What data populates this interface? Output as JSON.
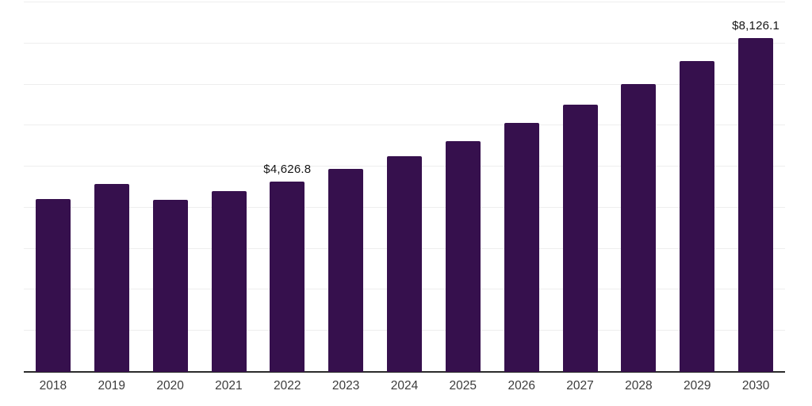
{
  "chart_data": {
    "type": "bar",
    "title": "",
    "xlabel": "",
    "ylabel": "",
    "categories": [
      "2018",
      "2019",
      "2020",
      "2021",
      "2022",
      "2023",
      "2024",
      "2025",
      "2026",
      "2027",
      "2028",
      "2029",
      "2030"
    ],
    "values": [
      4220,
      4570,
      4200,
      4410,
      4626.8,
      4940,
      5250,
      5630,
      6060,
      6500,
      7020,
      7580,
      8126.1
    ],
    "data_labels": [
      "",
      "",
      "",
      "",
      "$4,626.8",
      "",
      "",
      "",
      "",
      "",
      "",
      "",
      "$8,126.1"
    ],
    "ylim": [
      0,
      9000
    ],
    "gridline_step": 1000,
    "grid": "on",
    "legend": "none",
    "bar_color": "#36104D",
    "gridline_color": "#eeeeee",
    "axis_line_color": "#2b2b2b",
    "tick_label_color": "#3c3c3c",
    "data_label_color": "#161616",
    "currency_unit": "$"
  }
}
